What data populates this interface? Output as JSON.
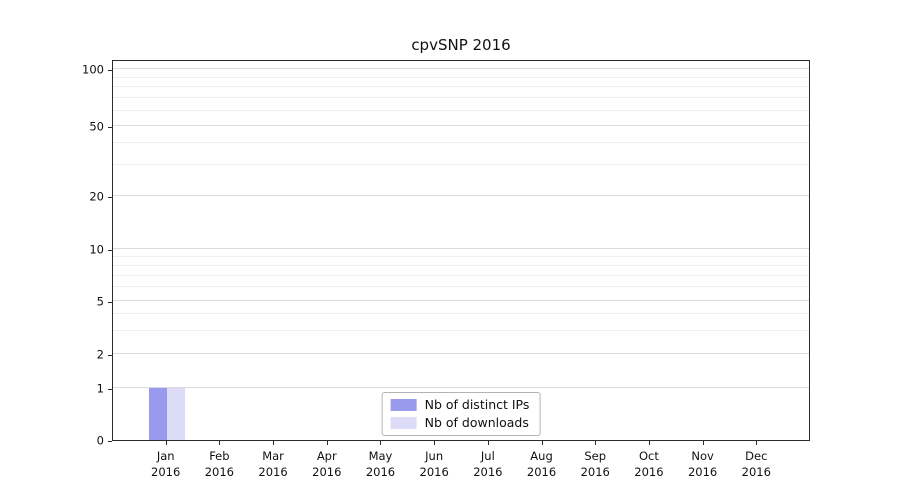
{
  "chart_data": {
    "type": "bar",
    "title": "cpvSNP 2016",
    "categories": [
      "Jan",
      "Feb",
      "Mar",
      "Apr",
      "May",
      "Jun",
      "Jul",
      "Aug",
      "Sep",
      "Oct",
      "Nov",
      "Dec"
    ],
    "year_label": "2016",
    "series": [
      {
        "name": "Nb of distinct IPs",
        "color": "#9999ee",
        "values": [
          1,
          0,
          0,
          0,
          0,
          0,
          0,
          0,
          0,
          0,
          0,
          0
        ]
      },
      {
        "name": "Nb of downloads",
        "color": "#dcdcf8",
        "values": [
          1,
          0,
          0,
          0,
          0,
          0,
          0,
          0,
          0,
          0,
          0,
          0
        ]
      }
    ],
    "y_ticks": [
      0,
      1,
      2,
      5,
      10,
      20,
      50,
      100
    ],
    "y_scale": "symlog",
    "ylim": [
      0,
      110
    ],
    "grid": true,
    "legend_position": "lower center",
    "colors": {
      "axis": "#2b2b2b",
      "grid_major": "#dcdcdc",
      "grid_minor": "#efefef"
    }
  }
}
